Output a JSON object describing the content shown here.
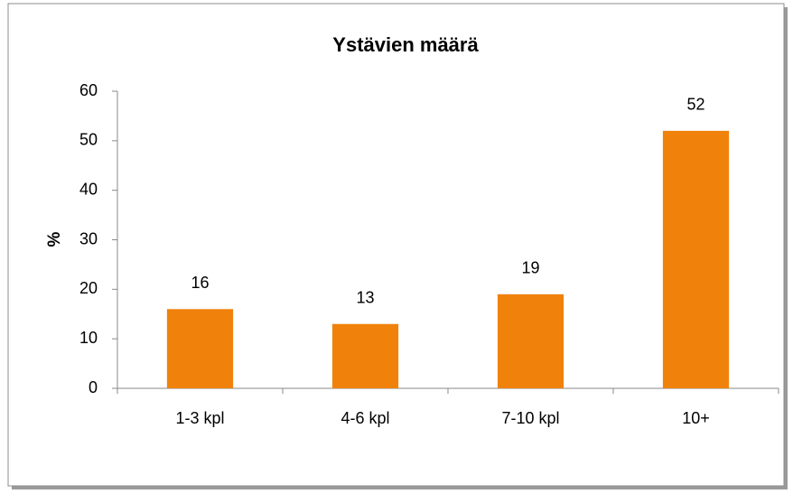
{
  "chart_data": {
    "type": "bar",
    "title": "Ystävien määrä",
    "y_label": "%",
    "categories": [
      "1-3 kpl",
      "4-6 kpl",
      "7-10 kpl",
      "10+"
    ],
    "values": [
      16,
      13,
      19,
      52
    ],
    "color": "#f0820c",
    "ylim": [
      0,
      60
    ],
    "yticks": [
      0,
      10,
      20,
      30,
      40,
      50,
      60
    ],
    "grid": false
  }
}
